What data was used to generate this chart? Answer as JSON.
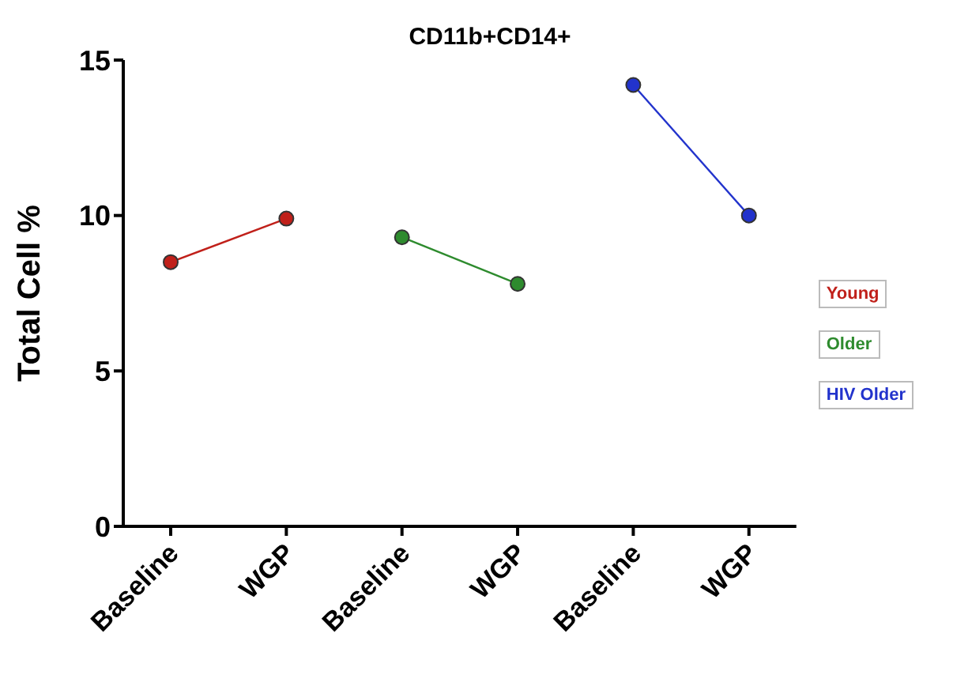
{
  "chart_data": {
    "type": "line",
    "title": "CD11b+CD14+",
    "ylabel": "Total Cell %",
    "categories": [
      "Baseline",
      "WGP",
      "Baseline",
      "WGP",
      "Baseline",
      "WGP"
    ],
    "series": [
      {
        "name": "Young",
        "color": "#c0201a",
        "values": [
          8.5,
          9.9,
          null,
          null,
          null,
          null
        ]
      },
      {
        "name": "Older",
        "color": "#2e8b2e",
        "values": [
          null,
          null,
          9.3,
          7.8,
          null,
          null
        ]
      },
      {
        "name": "HIV Older",
        "color": "#2233cc",
        "values": [
          null,
          null,
          null,
          null,
          14.2,
          10.0
        ]
      }
    ],
    "ylim": [
      0,
      15
    ],
    "yticks": [
      0,
      5,
      10,
      15
    ],
    "grid": false,
    "legend": "right",
    "marker": "circle",
    "line_style": "solid"
  }
}
